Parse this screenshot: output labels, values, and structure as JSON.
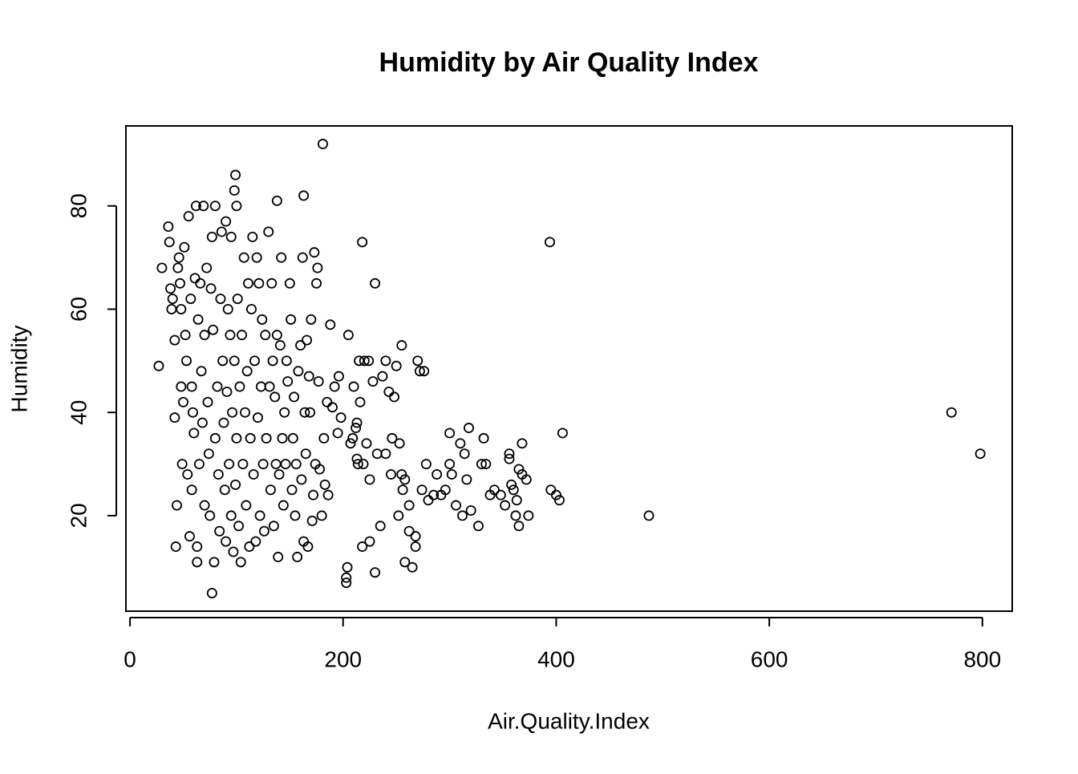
{
  "chart_data": {
    "type": "scatter",
    "title": "Humidity by Air Quality Index",
    "x_label": "Air.Quality.Index",
    "y_label": "Humidity",
    "color": "#000000",
    "xlim": [
      -3.8,
      828
    ],
    "ylim": [
      1.5,
      95.5
    ],
    "xticks": [
      0,
      200,
      400,
      600,
      800
    ],
    "yticks": [
      20,
      40,
      60,
      80
    ],
    "x": [
      181,
      99,
      394,
      771,
      798,
      487,
      406,
      395,
      400,
      403,
      77,
      218,
      230,
      163,
      138,
      368,
      372,
      374,
      205,
      210,
      213,
      215,
      220,
      222,
      225,
      228,
      232,
      235,
      237,
      240,
      243,
      246,
      248,
      250,
      252,
      253,
      255,
      256,
      258,
      262,
      265,
      268,
      270,
      272,
      276,
      278,
      280,
      285,
      288,
      292,
      296,
      300,
      300,
      302,
      306,
      310,
      312,
      314,
      316,
      318,
      320,
      327,
      330,
      332,
      334,
      338,
      342,
      348,
      352,
      356,
      356,
      358,
      360,
      362,
      363,
      365,
      365,
      368,
      203,
      203,
      204,
      218,
      225,
      230,
      213,
      214,
      219,
      224,
      216,
      207,
      209,
      212,
      240,
      255,
      245,
      258,
      268,
      274,
      262,
      27,
      30,
      36,
      37,
      38,
      39,
      40,
      42,
      42,
      43,
      44,
      45,
      46,
      47,
      48,
      48,
      49,
      50,
      51,
      52,
      53,
      54,
      55,
      56,
      57,
      58,
      58,
      59,
      60,
      61,
      62,
      63,
      63,
      64,
      65,
      66,
      67,
      68,
      69,
      70,
      70,
      72,
      73,
      74,
      75,
      76,
      77,
      78,
      79,
      80,
      80,
      82,
      83,
      84,
      85,
      86,
      87,
      88,
      89,
      90,
      90,
      91,
      92,
      93,
      94,
      95,
      95,
      96,
      97,
      98,
      98,
      99,
      100,
      100,
      101,
      102,
      103,
      104,
      105,
      106,
      107,
      108,
      109,
      110,
      111,
      112,
      113,
      114,
      115,
      116,
      117,
      118,
      119,
      120,
      121,
      122,
      123,
      124,
      125,
      126,
      127,
      128,
      130,
      131,
      132,
      133,
      134,
      135,
      136,
      137,
      138,
      139,
      140,
      141,
      142,
      143,
      144,
      145,
      146,
      147,
      148,
      150,
      151,
      152,
      153,
      154,
      155,
      156,
      157,
      158,
      160,
      161,
      162,
      163,
      164,
      165,
      166,
      167,
      168,
      169,
      170,
      171,
      172,
      173,
      174,
      175,
      176,
      177,
      178,
      180,
      182,
      183,
      185,
      186,
      188,
      190,
      192,
      195,
      196,
      198
    ],
    "values": [
      92,
      86,
      73,
      40,
      32,
      20,
      36,
      25,
      24,
      23,
      5,
      73,
      65,
      82,
      81,
      34,
      27,
      20,
      55,
      45,
      38,
      50,
      50,
      34,
      27,
      46,
      32,
      18,
      47,
      50,
      44,
      35,
      43,
      49,
      20,
      34,
      53,
      25,
      11,
      17,
      10,
      16,
      50,
      48,
      48,
      30,
      23,
      24,
      28,
      24,
      25,
      30,
      36,
      28,
      22,
      34,
      20,
      32,
      27,
      37,
      21,
      18,
      30,
      35,
      30,
      24,
      25,
      24,
      22,
      32,
      31,
      26,
      25,
      20,
      23,
      18,
      29,
      28,
      8,
      7,
      10,
      14,
      15,
      9,
      31,
      30,
      30,
      50,
      42,
      34,
      35,
      37,
      32,
      28,
      28,
      27,
      14,
      25,
      22,
      49,
      68,
      76,
      73,
      64,
      60,
      62,
      54,
      39,
      14,
      22,
      68,
      70,
      65,
      60,
      45,
      30,
      42,
      72,
      55,
      50,
      28,
      78,
      16,
      62,
      45,
      25,
      40,
      36,
      66,
      80,
      11,
      14,
      58,
      30,
      65,
      48,
      38,
      80,
      22,
      55,
      68,
      42,
      32,
      20,
      64,
      74,
      56,
      11,
      80,
      35,
      45,
      28,
      17,
      62,
      75,
      50,
      38,
      25,
      77,
      15,
      44,
      60,
      30,
      55,
      74,
      20,
      40,
      13,
      83,
      50,
      26,
      80,
      35,
      62,
      18,
      45,
      11,
      55,
      30,
      70,
      40,
      22,
      48,
      65,
      14,
      35,
      60,
      74,
      28,
      50,
      15,
      70,
      39,
      65,
      20,
      45,
      58,
      30,
      17,
      55,
      35,
      75,
      45,
      25,
      65,
      50,
      18,
      43,
      30,
      55,
      12,
      28,
      53,
      70,
      35,
      22,
      40,
      30,
      50,
      46,
      65,
      58,
      25,
      35,
      43,
      20,
      30,
      12,
      48,
      53,
      27,
      70,
      15,
      40,
      32,
      54,
      14,
      47,
      40,
      58,
      19,
      24,
      71,
      30,
      65,
      68,
      46,
      29,
      20,
      35,
      26,
      42,
      24,
      57,
      41,
      45,
      36,
      47,
      39
    ]
  }
}
